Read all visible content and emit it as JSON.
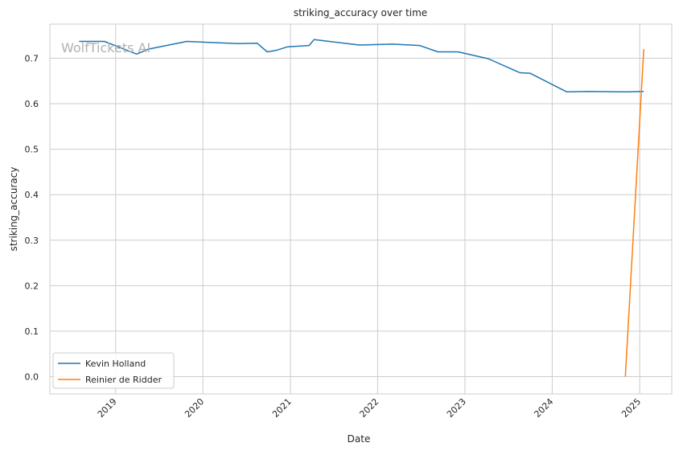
{
  "chart_data": {
    "type": "line",
    "title": "striking_accuracy over time",
    "xlabel": "Date",
    "ylabel": "striking_accuracy",
    "watermark": "WolfTickets AI",
    "xlim": [
      "2018-04-01",
      "2025-05-15"
    ],
    "ylim": [
      -0.038,
      0.775
    ],
    "x_ticks": [
      "2019-01-01",
      "2020-01-01",
      "2021-01-01",
      "2022-01-01",
      "2023-01-01",
      "2024-01-01",
      "2025-01-01"
    ],
    "x_tick_labels": [
      "2019",
      "2020",
      "2021",
      "2022",
      "2023",
      "2024",
      "2025"
    ],
    "y_ticks": [
      0.0,
      0.1,
      0.2,
      0.3,
      0.4,
      0.5,
      0.6,
      0.7
    ],
    "y_tick_labels": [
      "0.0",
      "0.1",
      "0.2",
      "0.3",
      "0.4",
      "0.5",
      "0.6",
      "0.7"
    ],
    "grid": true,
    "legend_position": "lower-left",
    "series": [
      {
        "name": "Kevin Holland",
        "color": "#1f77b4",
        "points": [
          {
            "x": "2018-08-01",
            "y": 0.737
          },
          {
            "x": "2018-11-15",
            "y": 0.737
          },
          {
            "x": "2019-03-30",
            "y": 0.709
          },
          {
            "x": "2019-05-18",
            "y": 0.72
          },
          {
            "x": "2019-10-26",
            "y": 0.737
          },
          {
            "x": "2020-05-30",
            "y": 0.732
          },
          {
            "x": "2020-08-15",
            "y": 0.733
          },
          {
            "x": "2020-09-26",
            "y": 0.714
          },
          {
            "x": "2020-11-01",
            "y": 0.717
          },
          {
            "x": "2020-12-19",
            "y": 0.725
          },
          {
            "x": "2021-03-20",
            "y": 0.728
          },
          {
            "x": "2021-04-10",
            "y": 0.741
          },
          {
            "x": "2021-10-16",
            "y": 0.729
          },
          {
            "x": "2022-03-05",
            "y": 0.731
          },
          {
            "x": "2022-06-25",
            "y": 0.728
          },
          {
            "x": "2022-09-10",
            "y": 0.714
          },
          {
            "x": "2022-12-03",
            "y": 0.714
          },
          {
            "x": "2023-04-08",
            "y": 0.699
          },
          {
            "x": "2023-08-19",
            "y": 0.668
          },
          {
            "x": "2023-09-30",
            "y": 0.667
          },
          {
            "x": "2024-03-02",
            "y": 0.626
          },
          {
            "x": "2024-06-01",
            "y": 0.627
          },
          {
            "x": "2024-11-09",
            "y": 0.626
          },
          {
            "x": "2025-01-18",
            "y": 0.627
          }
        ]
      },
      {
        "name": "Reinier de Ridder",
        "color": "#ff7f0e",
        "points": [
          {
            "x": "2024-11-02",
            "y": 0.0
          },
          {
            "x": "2025-01-18",
            "y": 0.72
          }
        ]
      }
    ]
  }
}
